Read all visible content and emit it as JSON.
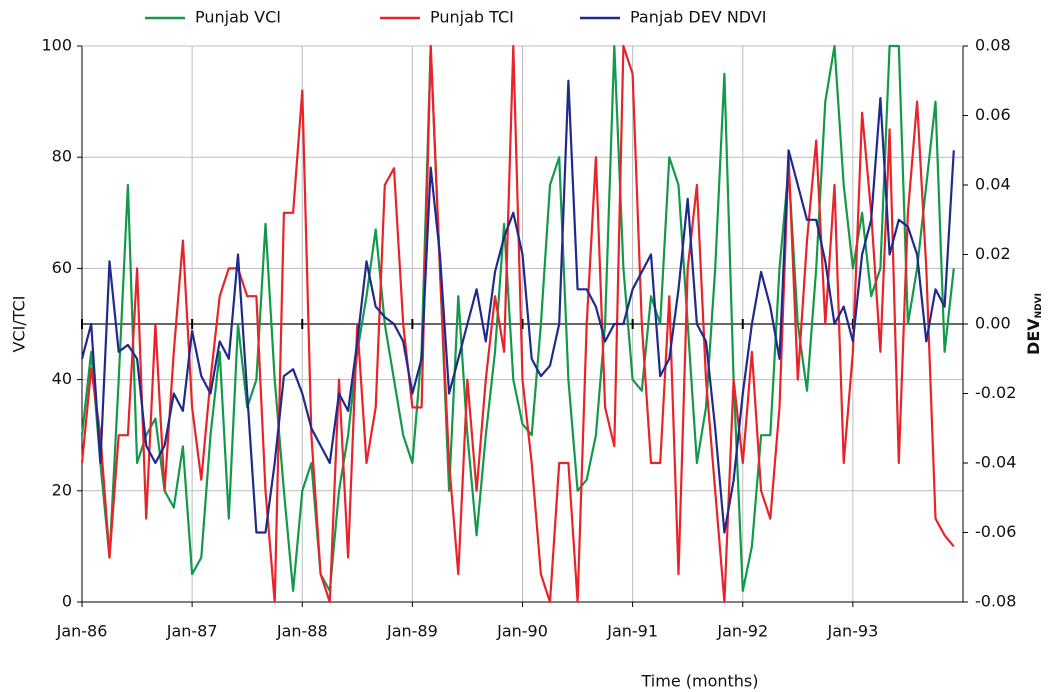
{
  "chart_data": {
    "type": "line",
    "x_label": "Time (months)",
    "y_label": "VCI/TCI",
    "y2_label": "DEV",
    "y2_label_sub": "NDVI",
    "categories": [
      "Jan-86",
      null,
      null,
      null,
      null,
      null,
      null,
      null,
      null,
      null,
      null,
      null,
      "Jan-87",
      null,
      null,
      null,
      null,
      null,
      null,
      null,
      null,
      null,
      null,
      null,
      "Jan-88",
      null,
      null,
      null,
      null,
      null,
      null,
      null,
      null,
      null,
      null,
      null,
      "Jan-89",
      null,
      null,
      null,
      null,
      null,
      null,
      null,
      null,
      null,
      null,
      null,
      "Jan-90",
      null,
      null,
      null,
      null,
      null,
      null,
      null,
      null,
      null,
      null,
      null,
      "Jan-91",
      null,
      null,
      null,
      null,
      null,
      null,
      null,
      null,
      null,
      null,
      null,
      "Jan-92",
      null,
      null,
      null,
      null,
      null,
      null,
      null,
      null,
      null,
      null,
      null,
      "Jan-93",
      null,
      null,
      null,
      null,
      null,
      null,
      null,
      null,
      null,
      null,
      null
    ],
    "series": [
      {
        "name": "Punjab VCI",
        "color": "#13994a",
        "values": [
          30,
          45,
          25,
          8,
          40,
          75,
          25,
          30,
          33,
          20,
          17,
          28,
          5,
          8,
          30,
          45,
          15,
          50,
          35,
          40,
          68,
          40,
          20,
          2,
          20,
          25,
          5,
          2,
          20,
          30,
          45,
          55,
          67,
          50,
          40,
          30,
          25,
          45,
          100,
          60,
          20,
          55,
          30,
          12,
          30,
          45,
          68,
          40,
          32,
          30,
          50,
          75,
          80,
          40,
          20,
          22,
          30,
          50,
          100,
          60,
          40,
          38,
          55,
          50,
          80,
          75,
          50,
          25,
          35,
          60,
          95,
          40,
          2,
          10,
          30,
          30,
          60,
          78,
          50,
          38,
          60,
          90,
          100,
          75,
          60,
          70,
          55,
          60,
          100,
          100,
          50,
          60,
          75,
          90,
          45,
          60
        ]
      },
      {
        "name": "Punjab TCI",
        "color": "#e8232a",
        "values": [
          25,
          42,
          30,
          8,
          30,
          30,
          60,
          15,
          50,
          20,
          45,
          65,
          35,
          22,
          40,
          55,
          60,
          60,
          55,
          55,
          20,
          0,
          70,
          70,
          92,
          30,
          5,
          0,
          40,
          8,
          50,
          25,
          35,
          75,
          78,
          50,
          35,
          35,
          100,
          60,
          25,
          5,
          40,
          20,
          40,
          55,
          45,
          100,
          40,
          25,
          5,
          0,
          25,
          25,
          0,
          50,
          80,
          35,
          28,
          100,
          95,
          50,
          25,
          25,
          55,
          5,
          60,
          75,
          40,
          20,
          0,
          40,
          25,
          45,
          20,
          15,
          35,
          80,
          40,
          65,
          83,
          50,
          75,
          25,
          45,
          88,
          70,
          45,
          85,
          25,
          70,
          90,
          60,
          15,
          12,
          10
        ]
      },
      {
        "name": "Panjab DEV NDVI",
        "color": "#1f2a8c",
        "axis": "y2",
        "values": [
          -0.01,
          0.0,
          -0.04,
          0.018,
          -0.008,
          -0.006,
          -0.01,
          -0.035,
          -0.04,
          -0.035,
          -0.02,
          -0.025,
          -0.002,
          -0.015,
          -0.02,
          -0.005,
          -0.01,
          0.02,
          -0.02,
          -0.06,
          -0.06,
          -0.04,
          -0.015,
          -0.013,
          -0.02,
          -0.03,
          -0.035,
          -0.04,
          -0.02,
          -0.025,
          -0.005,
          0.018,
          0.005,
          0.002,
          0.0,
          -0.005,
          -0.02,
          -0.01,
          0.045,
          0.02,
          -0.02,
          -0.01,
          0.0,
          0.01,
          -0.005,
          0.015,
          0.025,
          0.032,
          0.02,
          -0.01,
          -0.015,
          -0.012,
          0.0,
          0.07,
          0.01,
          0.01,
          0.005,
          -0.005,
          0.0,
          0.0,
          0.01,
          0.015,
          0.02,
          -0.015,
          -0.01,
          0.01,
          0.036,
          0.0,
          -0.005,
          -0.03,
          -0.06,
          -0.045,
          -0.02,
          0.0,
          0.015,
          0.005,
          -0.01,
          0.05,
          0.04,
          0.03,
          0.03,
          0.018,
          0.0,
          0.005,
          -0.005,
          0.02,
          0.03,
          0.065,
          0.02,
          0.03,
          0.028,
          0.02,
          -0.005,
          0.01,
          0.005,
          0.05
        ]
      }
    ],
    "ylim": [
      0,
      100
    ],
    "yticks": [
      0,
      20,
      40,
      60,
      80,
      100
    ],
    "y2lim": [
      -0.08,
      0.08
    ],
    "y2ticks": [
      -0.08,
      -0.06,
      -0.04,
      -0.02,
      {
        "value": 0,
        "label": "0.00"
      },
      0.02,
      0.04,
      0.06,
      0.08
    ],
    "grid": true
  }
}
